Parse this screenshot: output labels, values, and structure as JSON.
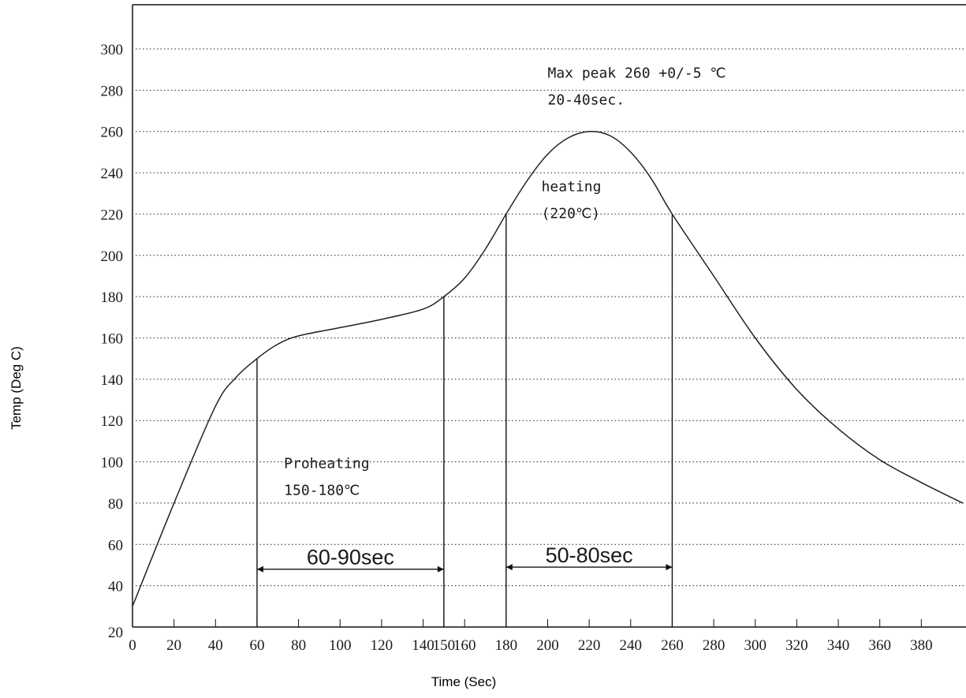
{
  "chart_data": {
    "type": "line",
    "title": "",
    "xlabel": "Time (Sec)",
    "ylabel": "Temp (Deg C)",
    "xlim": [
      0,
      400
    ],
    "ylim": [
      20,
      300
    ],
    "x_ticks": [
      0,
      20,
      40,
      60,
      80,
      100,
      120,
      140,
      150,
      160,
      180,
      200,
      220,
      240,
      260,
      280,
      300,
      320,
      340,
      360,
      380
    ],
    "y_ticks": [
      20,
      40,
      60,
      80,
      100,
      120,
      140,
      160,
      180,
      200,
      220,
      240,
      260,
      280,
      300
    ],
    "grid": "horizontal dotted",
    "series": [
      {
        "color": "#222222",
        "x": [
          0,
          20,
          40,
          50,
          60,
          70,
          80,
          100,
          120,
          140,
          150,
          160,
          170,
          180,
          190,
          200,
          210,
          220,
          230,
          240,
          250,
          260,
          280,
          300,
          320,
          340,
          360,
          380,
          400
        ],
        "y": [
          30,
          80,
          127,
          141,
          150,
          157,
          161,
          165,
          169,
          174,
          180,
          189,
          203,
          220,
          236,
          249,
          257,
          260,
          258,
          250,
          237,
          220,
          190,
          160,
          135,
          116,
          101,
          90,
          80
        ]
      }
    ],
    "markers": [
      {
        "x": 60,
        "y": 150
      },
      {
        "x": 150,
        "y": 180
      },
      {
        "x": 180,
        "y": 220
      },
      {
        "x": 260,
        "y": 220
      }
    ],
    "durations": [
      {
        "label": "60-90sec",
        "x_start": 60,
        "x_end": 150,
        "y": 48
      },
      {
        "label": "50-80sec",
        "x_start": 180,
        "x_end": 260,
        "y": 49
      }
    ],
    "annotations": [
      {
        "lines": [
          "Max peak 260 +0/-5 ℃",
          "20-40sec."
        ],
        "x": 200,
        "y": 286
      },
      {
        "lines": [
          "heating",
          "(220℃)"
        ],
        "x": 197,
        "y": 231
      },
      {
        "lines": [
          "Proheating",
          "150-180℃"
        ],
        "x": 73,
        "y": 97
      }
    ]
  }
}
